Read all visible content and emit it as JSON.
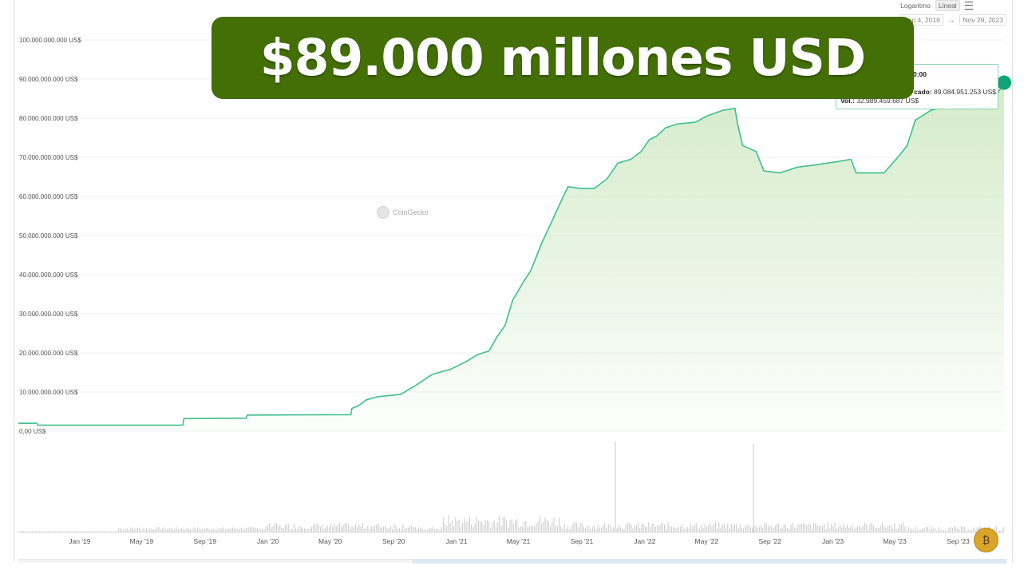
{
  "banner": {
    "text": "$89.000 millones USD"
  },
  "controls": {
    "scale_options": [
      "Logaritmo",
      "Lineal"
    ],
    "selected_scale": "Lineal",
    "date_from": "Sep 4, 2018",
    "date_arrow": "→",
    "date_to": "Nov 29, 2023"
  },
  "tooltip": {
    "time": "0:00",
    "mcap_label": "cado:",
    "mcap_value": "89.084.951.253 US$",
    "vol_label": "Vol.:",
    "vol_value": "32.989.459.687 US$"
  },
  "watermark": "CoinGecko",
  "colors": {
    "line": "#3fbf8d",
    "area_top": "#cfe9c4",
    "banner_bg": "#436f06",
    "volume": "#c8c8c8",
    "marker": "#10a37a"
  },
  "chart_data": {
    "type": "area",
    "title": "",
    "xlabel": "",
    "ylabel": "",
    "ylim": [
      0,
      100000000000
    ],
    "y_ticks": [
      0,
      10000000000,
      20000000000,
      30000000000,
      40000000000,
      50000000000,
      60000000000,
      70000000000,
      80000000000,
      90000000000,
      100000000000
    ],
    "y_tick_labels": [
      "0,00 US$",
      "10.000.000.000 US$",
      "20.000.000.000 US$",
      "30.000.000.000 US$",
      "40.000.000.000 US$",
      "50.000.000.000 US$",
      "60.000.000.000 US$",
      "70.000.000.000 US$",
      "80.000.000.000 US$",
      "90.000.000.000 US$",
      "100.000.000.000 US$"
    ],
    "x_tick_labels": [
      "Jan '19",
      "May '19",
      "Sep '19",
      "Jan '20",
      "May '20",
      "Sep '20",
      "Jan '21",
      "May '21",
      "Sep '21",
      "Jan '22",
      "May '22",
      "Sep '22",
      "Jan '23",
      "May '23",
      "Sep '23"
    ],
    "x_tick_dates": [
      "2019-01-01",
      "2019-05-01",
      "2019-09-01",
      "2020-01-01",
      "2020-05-01",
      "2020-09-01",
      "2021-01-01",
      "2021-05-01",
      "2021-09-01",
      "2022-01-01",
      "2022-05-01",
      "2022-09-01",
      "2023-01-01",
      "2023-05-01",
      "2023-09-01"
    ],
    "x_range": [
      "2018-09-04",
      "2023-11-29"
    ],
    "grid": true,
    "series": [
      {
        "metric": "market_cap",
        "points": [
          [
            "2018-09-04",
            2000000000.0
          ],
          [
            "2018-10-10",
            2000000000.0
          ],
          [
            "2018-10-12",
            1500000000.0
          ],
          [
            "2019-07-20",
            1500000000.0
          ],
          [
            "2019-07-22",
            3200000000.0
          ],
          [
            "2019-11-20",
            3300000000.0
          ],
          [
            "2019-11-22",
            4100000000.0
          ],
          [
            "2020-06-10",
            4200000000.0
          ],
          [
            "2020-06-12",
            5800000000.0
          ],
          [
            "2020-06-25",
            6500000000.0
          ],
          [
            "2020-07-10",
            8000000000.0
          ],
          [
            "2020-08-01",
            8800000000.0
          ],
          [
            "2020-09-15",
            9400000000.0
          ],
          [
            "2020-10-15",
            11800000000.0
          ],
          [
            "2020-11-15",
            14500000000.0
          ],
          [
            "2020-12-20",
            15800000000.0
          ],
          [
            "2021-01-20",
            17800000000.0
          ],
          [
            "2021-02-10",
            19500000000.0
          ],
          [
            "2021-03-05",
            20500000000.0
          ],
          [
            "2021-03-20",
            24000000000.0
          ],
          [
            "2021-04-05",
            27000000000.0
          ],
          [
            "2021-04-20",
            33500000000.0
          ],
          [
            "2021-05-10",
            38000000000.0
          ],
          [
            "2021-05-25",
            41000000000.0
          ],
          [
            "2021-06-15",
            48000000000.0
          ],
          [
            "2021-07-01",
            52500000000.0
          ],
          [
            "2021-07-20",
            58000000000.0
          ],
          [
            "2021-08-05",
            62500000000.0
          ],
          [
            "2021-09-01",
            62000000000.0
          ],
          [
            "2021-09-25",
            62000000000.0
          ],
          [
            "2021-10-20",
            64500000000.0
          ],
          [
            "2021-11-10",
            68500000000.0
          ],
          [
            "2021-12-05",
            69500000000.0
          ],
          [
            "2021-12-25",
            71500000000.0
          ],
          [
            "2022-01-10",
            74500000000.0
          ],
          [
            "2022-01-25",
            75500000000.0
          ],
          [
            "2022-02-10",
            77500000000.0
          ],
          [
            "2022-03-05",
            78500000000.0
          ],
          [
            "2022-04-10",
            79000000000.0
          ],
          [
            "2022-05-01",
            80500000000.0
          ],
          [
            "2022-06-01",
            82000000000.0
          ],
          [
            "2022-06-25",
            82500000000.0
          ],
          [
            "2022-07-01",
            78000000000.0
          ],
          [
            "2022-07-10",
            73000000000.0
          ],
          [
            "2022-08-05",
            71500000000.0
          ],
          [
            "2022-08-20",
            66500000000.0
          ],
          [
            "2022-09-20",
            66000000000.0
          ],
          [
            "2022-10-25",
            67500000000.0
          ],
          [
            "2022-11-25",
            68000000000.0
          ],
          [
            "2023-01-15",
            69000000000.0
          ],
          [
            "2023-02-05",
            69500000000.0
          ],
          [
            "2023-02-15",
            66000000000.0
          ],
          [
            "2023-03-20",
            66000000000.0
          ],
          [
            "2023-04-10",
            66000000000.0
          ],
          [
            "2023-05-10",
            70500000000.0
          ],
          [
            "2023-05-25",
            73000000000.0
          ],
          [
            "2023-06-10",
            79500000000.0
          ],
          [
            "2023-07-10",
            82000000000.0
          ],
          [
            "2023-08-10",
            83000000000.0
          ],
          [
            "2023-09-10",
            83500000000.0
          ],
          [
            "2023-10-01",
            83500000000.0
          ],
          [
            "2023-10-10",
            82500000000.0
          ],
          [
            "2023-11-01",
            83000000000.0
          ],
          [
            "2023-11-29",
            89080000000.0
          ]
        ]
      }
    ],
    "volume_bars": true
  }
}
